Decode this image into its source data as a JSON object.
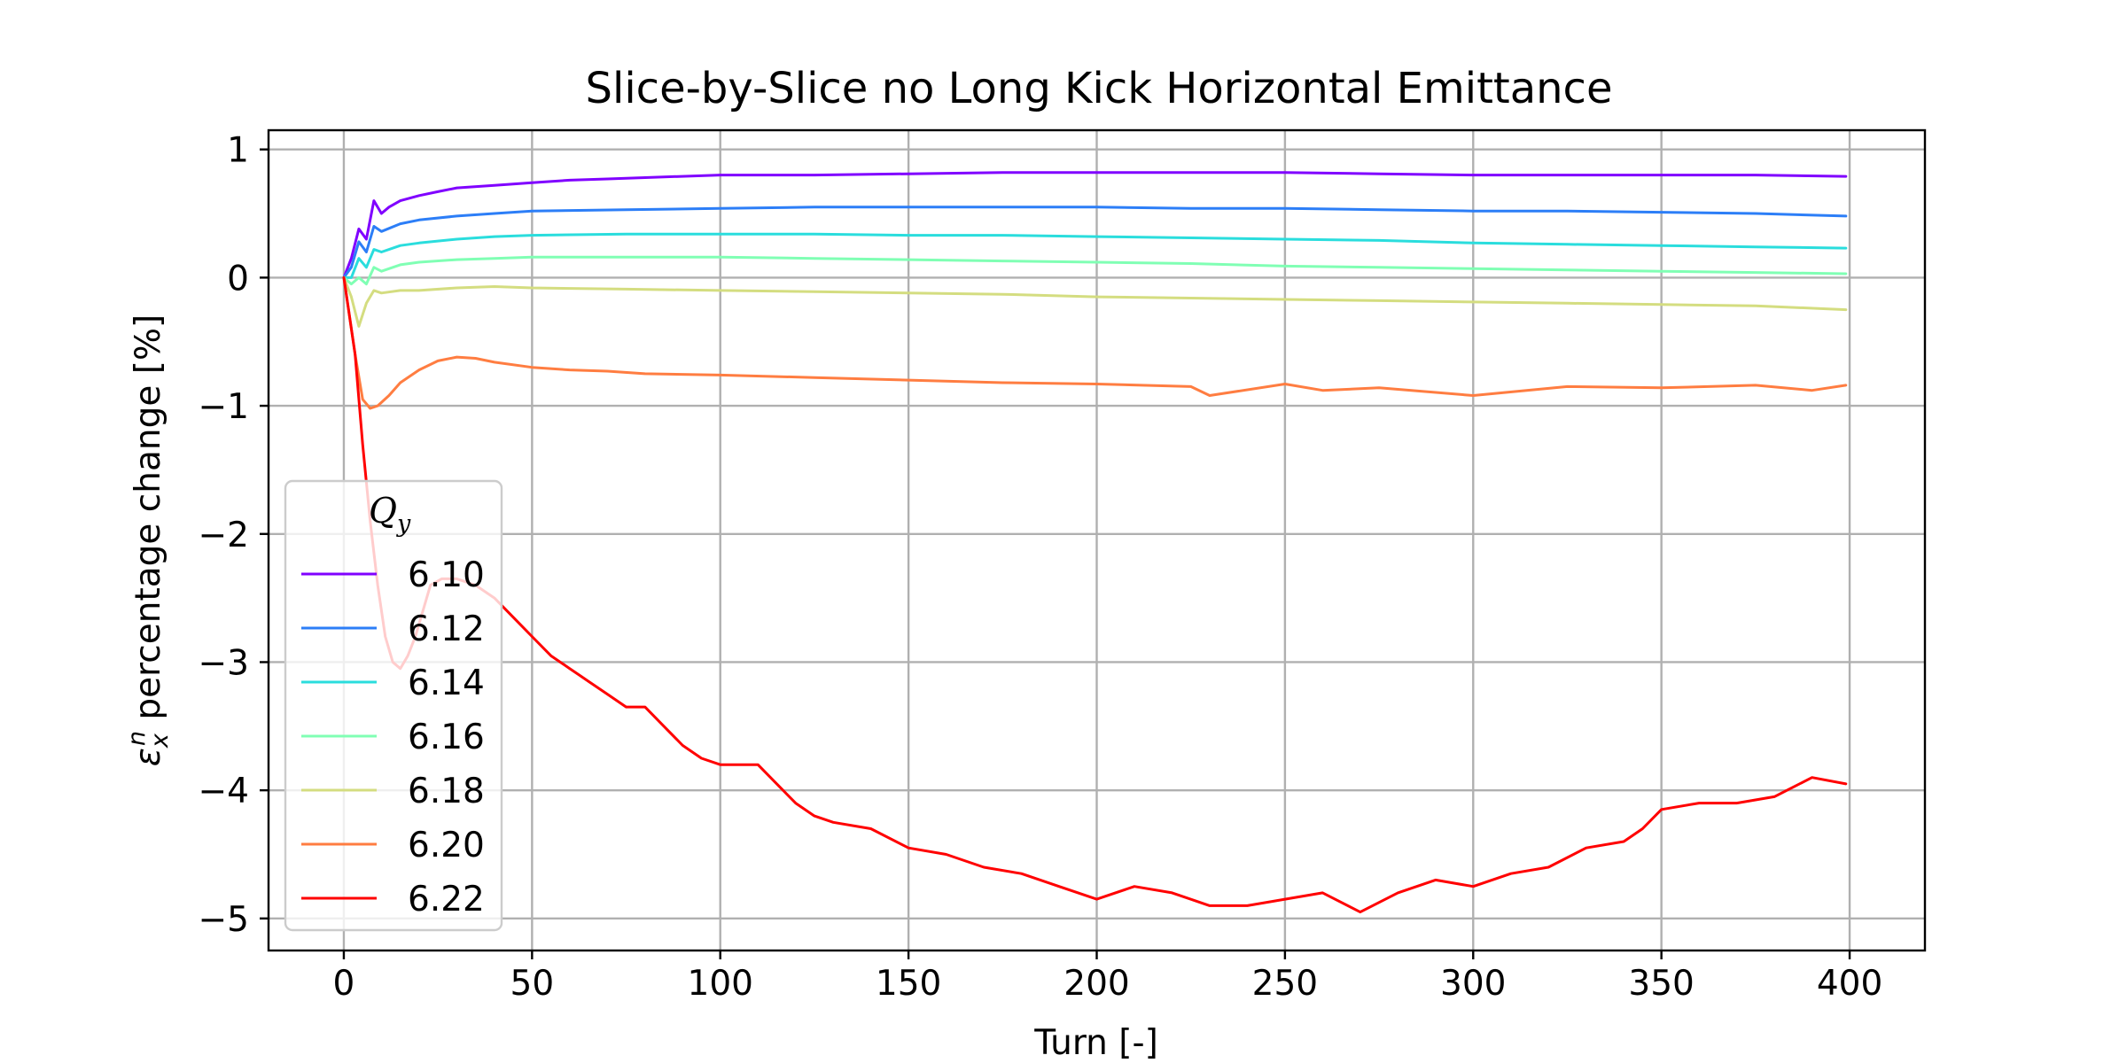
{
  "chart_data": {
    "type": "line",
    "title": "Slice-by-Slice no Long Kick Horizontal Emittance",
    "xlabel": "Turn [-]",
    "ylabel_symbol": "ε",
    "ylabel_sup": "n",
    "ylabel_sub": "x",
    "ylabel_rest": " percentage change [%]",
    "xlim": [
      -20,
      420
    ],
    "ylim": [
      -5.25,
      1.15
    ],
    "xticks": [
      0,
      50,
      100,
      150,
      200,
      250,
      300,
      350,
      400
    ],
    "yticks": [
      1,
      0,
      -1,
      -2,
      -3,
      -4,
      -5
    ],
    "xtick_labels": [
      "0",
      "50",
      "100",
      "150",
      "200",
      "250",
      "300",
      "350",
      "400"
    ],
    "ytick_labels": [
      "1",
      "0",
      "−1",
      "−2",
      "−3",
      "−4",
      "−5"
    ],
    "grid": true,
    "legend": {
      "title_main": "Q",
      "title_sub": "y",
      "placement": "lower-left"
    },
    "series": [
      {
        "name": "6.10",
        "color": "#8000ff",
        "x": [
          0,
          2,
          4,
          6,
          8,
          10,
          12,
          15,
          20,
          25,
          30,
          40,
          50,
          60,
          70,
          80,
          100,
          125,
          150,
          175,
          200,
          225,
          250,
          275,
          300,
          325,
          350,
          375,
          399
        ],
        "y": [
          0,
          0.15,
          0.38,
          0.3,
          0.6,
          0.5,
          0.55,
          0.6,
          0.64,
          0.67,
          0.7,
          0.72,
          0.74,
          0.76,
          0.77,
          0.78,
          0.8,
          0.8,
          0.81,
          0.82,
          0.82,
          0.82,
          0.82,
          0.81,
          0.8,
          0.8,
          0.8,
          0.8,
          0.79
        ]
      },
      {
        "name": "6.12",
        "color": "#2c7ef7",
        "x": [
          0,
          2,
          4,
          6,
          8,
          10,
          15,
          20,
          30,
          40,
          50,
          75,
          100,
          125,
          150,
          175,
          200,
          225,
          250,
          275,
          300,
          325,
          350,
          375,
          399
        ],
        "y": [
          0,
          0.08,
          0.28,
          0.2,
          0.4,
          0.36,
          0.42,
          0.45,
          0.48,
          0.5,
          0.52,
          0.53,
          0.54,
          0.55,
          0.55,
          0.55,
          0.55,
          0.54,
          0.54,
          0.53,
          0.52,
          0.52,
          0.51,
          0.5,
          0.48
        ]
      },
      {
        "name": "6.14",
        "color": "#2adddd",
        "x": [
          0,
          2,
          4,
          6,
          8,
          10,
          15,
          20,
          30,
          40,
          50,
          75,
          100,
          125,
          150,
          175,
          200,
          225,
          250,
          275,
          300,
          325,
          350,
          375,
          399
        ],
        "y": [
          0,
          0.0,
          0.15,
          0.08,
          0.22,
          0.2,
          0.25,
          0.27,
          0.3,
          0.32,
          0.33,
          0.34,
          0.34,
          0.34,
          0.33,
          0.33,
          0.32,
          0.31,
          0.3,
          0.29,
          0.27,
          0.26,
          0.25,
          0.24,
          0.23
        ]
      },
      {
        "name": "6.16",
        "color": "#80ffb4",
        "x": [
          0,
          2,
          4,
          6,
          8,
          10,
          15,
          20,
          30,
          40,
          50,
          75,
          100,
          125,
          150,
          175,
          200,
          225,
          250,
          275,
          300,
          325,
          350,
          375,
          399
        ],
        "y": [
          0,
          -0.05,
          0.0,
          -0.05,
          0.08,
          0.05,
          0.1,
          0.12,
          0.14,
          0.15,
          0.16,
          0.16,
          0.16,
          0.15,
          0.14,
          0.13,
          0.12,
          0.11,
          0.09,
          0.08,
          0.07,
          0.06,
          0.05,
          0.04,
          0.03
        ]
      },
      {
        "name": "6.18",
        "color": "#d4dd80",
        "x": [
          0,
          2,
          4,
          6,
          8,
          10,
          15,
          20,
          30,
          40,
          50,
          75,
          100,
          125,
          150,
          175,
          200,
          225,
          250,
          275,
          300,
          325,
          350,
          375,
          399
        ],
        "y": [
          0,
          -0.15,
          -0.38,
          -0.2,
          -0.1,
          -0.12,
          -0.1,
          -0.1,
          -0.08,
          -0.07,
          -0.08,
          -0.09,
          -0.1,
          -0.11,
          -0.12,
          -0.13,
          -0.15,
          -0.16,
          -0.17,
          -0.18,
          -0.19,
          -0.2,
          -0.21,
          -0.22,
          -0.25
        ]
      },
      {
        "name": "6.20",
        "color": "#ff7d41",
        "x": [
          0,
          3,
          5,
          7,
          9,
          12,
          15,
          20,
          25,
          30,
          35,
          40,
          50,
          60,
          70,
          80,
          100,
          125,
          150,
          175,
          200,
          225,
          230,
          250,
          260,
          275,
          300,
          325,
          350,
          375,
          390,
          399
        ],
        "y": [
          0,
          -0.6,
          -0.95,
          -1.02,
          -1.0,
          -0.92,
          -0.82,
          -0.72,
          -0.65,
          -0.62,
          -0.63,
          -0.66,
          -0.7,
          -0.72,
          -0.73,
          -0.75,
          -0.76,
          -0.78,
          -0.8,
          -0.82,
          -0.83,
          -0.85,
          -0.92,
          -0.83,
          -0.88,
          -0.86,
          -0.92,
          -0.85,
          -0.86,
          -0.84,
          -0.88,
          -0.84
        ]
      },
      {
        "name": "6.22",
        "color": "#ff0000",
        "x": [
          0,
          3,
          5,
          7,
          9,
          11,
          13,
          15,
          17,
          19,
          21,
          23,
          26,
          30,
          35,
          40,
          45,
          50,
          55,
          60,
          65,
          70,
          75,
          80,
          85,
          90,
          95,
          100,
          110,
          120,
          125,
          130,
          140,
          150,
          160,
          170,
          180,
          190,
          200,
          210,
          220,
          230,
          240,
          250,
          260,
          270,
          280,
          290,
          300,
          310,
          320,
          330,
          340,
          345,
          350,
          360,
          370,
          380,
          390,
          399
        ],
        "y": [
          0,
          -0.6,
          -1.3,
          -1.9,
          -2.4,
          -2.8,
          -3.0,
          -3.05,
          -2.95,
          -2.8,
          -2.6,
          -2.4,
          -2.35,
          -2.35,
          -2.4,
          -2.5,
          -2.65,
          -2.8,
          -2.95,
          -3.05,
          -3.15,
          -3.25,
          -3.35,
          -3.35,
          -3.5,
          -3.65,
          -3.75,
          -3.8,
          -3.8,
          -4.1,
          -4.2,
          -4.25,
          -4.3,
          -4.45,
          -4.5,
          -4.6,
          -4.65,
          -4.75,
          -4.85,
          -4.75,
          -4.8,
          -4.9,
          -4.9,
          -4.85,
          -4.8,
          -4.95,
          -4.8,
          -4.7,
          -4.75,
          -4.65,
          -4.6,
          -4.45,
          -4.4,
          -4.3,
          -4.15,
          -4.1,
          -4.1,
          -4.05,
          -3.9,
          -3.95
        ]
      }
    ]
  }
}
